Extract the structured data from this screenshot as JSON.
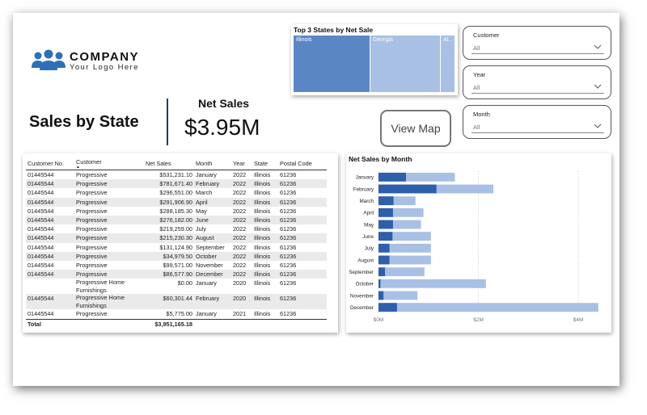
{
  "logo": {
    "company": "COMPANY",
    "tagline": "Your Logo Here"
  },
  "page_title": "Sales by State",
  "kpi": {
    "label": "Net Sales",
    "value": "$3.95M"
  },
  "treemap": {
    "title": "Top 3 States by Net Sale",
    "items": [
      {
        "label": "Illinois",
        "color": "#5b86c4",
        "share": 0.473
      },
      {
        "label": "Georgia",
        "color": "#a8c0e4",
        "share": 0.437
      },
      {
        "label": "Al...",
        "color": "#a8c0e4",
        "share": 0.09
      }
    ]
  },
  "view_map_button": "View Map",
  "slicers": [
    {
      "label": "Customer",
      "value": "All"
    },
    {
      "label": "Year",
      "value": "All"
    },
    {
      "label": "Month",
      "value": "All"
    }
  ],
  "table": {
    "columns": [
      "Customer No.",
      "Customer",
      "Net Sales",
      "Month",
      "Year",
      "State",
      "Postal Code"
    ],
    "rows": [
      [
        "01445544",
        "Progressive",
        "$531,231.10",
        "January",
        "2022",
        "Illinois",
        "61236"
      ],
      [
        "01445544",
        "Progressive",
        "$781,671.40",
        "February",
        "2022",
        "Illinois",
        "61236"
      ],
      [
        "01445544",
        "Progressive",
        "$296,551.00",
        "March",
        "2022",
        "Illinois",
        "61236"
      ],
      [
        "01445544",
        "Progressive",
        "$291,906.90",
        "April",
        "2022",
        "Illinois",
        "61236"
      ],
      [
        "01445544",
        "Progressive",
        "$288,185.30",
        "May",
        "2022",
        "Illinois",
        "61236"
      ],
      [
        "01445544",
        "Progressive",
        "$276,182.00",
        "June",
        "2022",
        "Illinois",
        "61236"
      ],
      [
        "01445544",
        "Progressive",
        "$219,259.00",
        "July",
        "2022",
        "Illinois",
        "61236"
      ],
      [
        "01445544",
        "Progressive",
        "$215,230.30",
        "August",
        "2022",
        "Illinois",
        "61236"
      ],
      [
        "01445544",
        "Progressive",
        "$131,124.90",
        "September",
        "2022",
        "Illinois",
        "61236"
      ],
      [
        "01445544",
        "Progressive",
        "$34,979.50",
        "October",
        "2022",
        "Illinois",
        "61236"
      ],
      [
        "01445544",
        "Progressive",
        "$99,571.00",
        "November",
        "2022",
        "Illinois",
        "61236"
      ],
      [
        "01445544",
        "Progressive",
        "$86,577.90",
        "December",
        "2022",
        "Illinois",
        "61236"
      ],
      [
        "",
        "Progressive Home Furnishings",
        "$0.00",
        "January",
        "2020",
        "Illinois",
        "61236"
      ],
      [
        "01445544",
        "Progressive Home Furnishings",
        "$60,301.44",
        "February",
        "2020",
        "Illinois",
        "61236"
      ],
      [
        "01445544",
        "Progressive",
        "$5,775.00",
        "January",
        "2021",
        "Illinois",
        "61236"
      ]
    ],
    "total": {
      "label": "Total",
      "net_sales": "$3,951,165.18"
    }
  },
  "chart_data": {
    "type": "bar",
    "title": "Net Sales by Month",
    "categories": [
      "January",
      "February",
      "March",
      "April",
      "May",
      "June",
      "July",
      "August",
      "September",
      "October",
      "November",
      "December"
    ],
    "series": [
      {
        "values": [
          0.55,
          1.16,
          0.3,
          0.29,
          0.29,
          0.28,
          0.22,
          0.22,
          0.13,
          0.04,
          0.1,
          0.37
        ],
        "color": "#2e5fac"
      },
      {
        "values": [
          1.53,
          2.3,
          0.74,
          0.9,
          0.85,
          1.05,
          1.05,
          1.05,
          0.92,
          2.15,
          0.78,
          4.4
        ],
        "color": "#a8c0e4"
      }
    ],
    "stacked": false,
    "xticks": [
      "$0M",
      "$2M",
      "$4M"
    ],
    "xlim": [
      0,
      4.5
    ],
    "grid": "vertical dotted"
  },
  "colors": {
    "dark_blue": "#2e5fac",
    "light_blue": "#a8c0e4",
    "logo_blue": "#2e6fb7"
  }
}
